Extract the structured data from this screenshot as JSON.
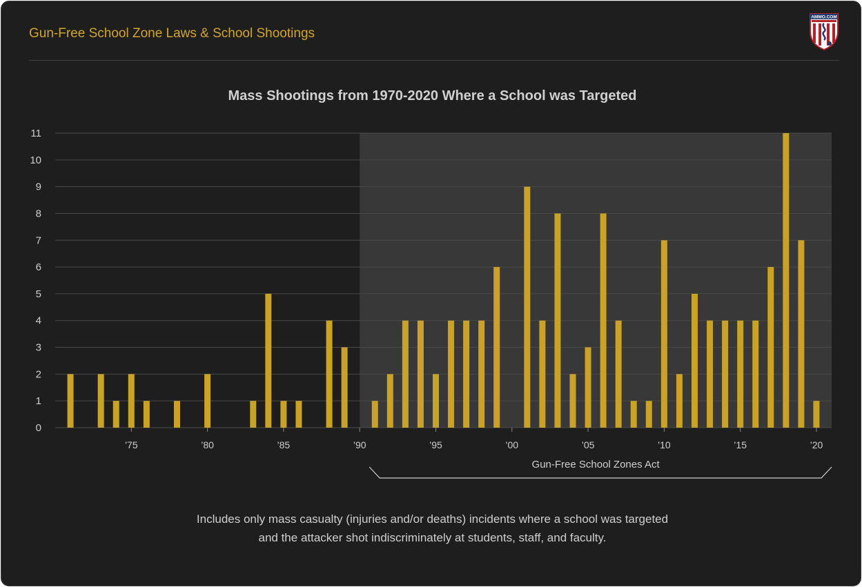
{
  "header": {
    "title": "Gun-Free School Zone Laws & School Shootings",
    "logo_text": "AMMO.COM"
  },
  "colors": {
    "bar": "#c9a227",
    "background": "#1e1e1e",
    "shaded_region": "#383838",
    "grid": "#4a4a4a",
    "text": "#cfcfcf"
  },
  "chart_data": {
    "type": "bar",
    "title": "Mass Shootings from 1970-2020 Where a School was Targeted",
    "xlabel": "",
    "ylabel": "",
    "ylim": [
      0,
      11
    ],
    "yticks": [
      0,
      1,
      2,
      3,
      4,
      5,
      6,
      7,
      8,
      9,
      10,
      11
    ],
    "grid": true,
    "xlim": [
      1970,
      2021
    ],
    "x_tick_years": [
      1975,
      1980,
      1985,
      1990,
      1995,
      2000,
      2005,
      2010,
      2015,
      2020
    ],
    "x_tick_labels": [
      "’75",
      "’80",
      "’85",
      "’90",
      "’95",
      "’00",
      "’05",
      "’10",
      "’15",
      "’20"
    ],
    "x": [
      1971,
      1972,
      1973,
      1974,
      1975,
      1976,
      1977,
      1978,
      1979,
      1980,
      1981,
      1982,
      1983,
      1984,
      1985,
      1986,
      1987,
      1988,
      1989,
      1990,
      1991,
      1992,
      1993,
      1994,
      1995,
      1996,
      1997,
      1998,
      1999,
      2000,
      2001,
      2002,
      2003,
      2004,
      2005,
      2006,
      2007,
      2008,
      2009,
      2010,
      2011,
      2012,
      2013,
      2014,
      2015,
      2016,
      2017,
      2018,
      2019,
      2020
    ],
    "values": [
      2,
      0,
      2,
      1,
      2,
      1,
      0,
      1,
      0,
      2,
      0,
      0,
      1,
      5,
      1,
      1,
      0,
      4,
      3,
      0,
      1,
      2,
      4,
      4,
      2,
      4,
      4,
      4,
      6,
      0,
      9,
      4,
      8,
      2,
      3,
      8,
      4,
      1,
      1,
      7,
      2,
      5,
      4,
      4,
      4,
      4,
      6,
      11,
      7,
      1
    ],
    "highlight_region": {
      "start_year": 1990,
      "end_year": 2021,
      "label": "Gun-Free School Zones Act"
    }
  },
  "footnote": {
    "line1": "Includes only mass casualty (injuries and/or deaths) incidents where a school was targeted",
    "line2": "and the attacker shot indiscriminately at students, staff, and faculty."
  }
}
